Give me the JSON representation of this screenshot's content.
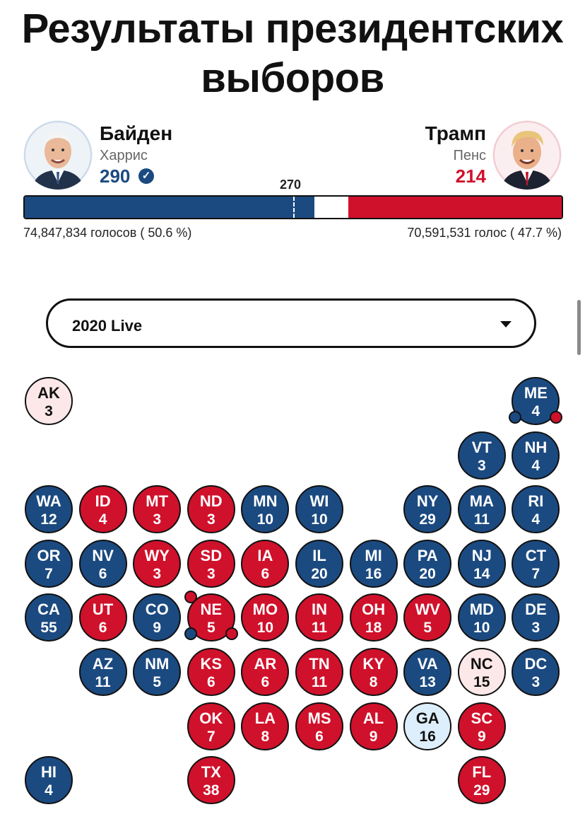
{
  "title": "Результаты президентских выборов",
  "democrat": {
    "name": "Байден",
    "running_mate": "Харрис",
    "electoral_votes": "290",
    "popular_votes": "74,847,834 голосов ( 50.6 %)",
    "winner_check": "✓",
    "color": "#1b4a80",
    "photo_icon": "biden-portrait"
  },
  "republican": {
    "name": "Трамп",
    "running_mate": "Пенс",
    "electoral_votes": "214",
    "popular_votes": "70,591,531 голос ( 47.7 %)",
    "color": "#d0112b",
    "photo_icon": "trump-portrait"
  },
  "bar": {
    "threshold_label": "270",
    "total": 538,
    "dem_value": 290,
    "rep_value": 214,
    "threshold": 270
  },
  "dropdown": {
    "selected": "2020 Live"
  },
  "legend_colors": {
    "dem": "#1b4a80",
    "rep": "#d0112b",
    "lean_rep": "#fde8e9",
    "lean_dem": "#ddeefc"
  },
  "states": [
    {
      "abbr": "AK",
      "ev": "3",
      "status": "lr",
      "col": 0,
      "row": 0
    },
    {
      "abbr": "ME",
      "ev": "4",
      "status": "D",
      "col": 9,
      "row": 0
    },
    {
      "abbr": "VT",
      "ev": "3",
      "status": "D",
      "col": 8,
      "row": 1
    },
    {
      "abbr": "NH",
      "ev": "4",
      "status": "D",
      "col": 9,
      "row": 1
    },
    {
      "abbr": "WA",
      "ev": "12",
      "status": "D",
      "col": 0,
      "row": 2
    },
    {
      "abbr": "ID",
      "ev": "4",
      "status": "R",
      "col": 1,
      "row": 2
    },
    {
      "abbr": "MT",
      "ev": "3",
      "status": "R",
      "col": 2,
      "row": 2
    },
    {
      "abbr": "ND",
      "ev": "3",
      "status": "R",
      "col": 3,
      "row": 2
    },
    {
      "abbr": "MN",
      "ev": "10",
      "status": "D",
      "col": 4,
      "row": 2
    },
    {
      "abbr": "WI",
      "ev": "10",
      "status": "D",
      "col": 5,
      "row": 2
    },
    {
      "abbr": "NY",
      "ev": "29",
      "status": "D",
      "col": 7,
      "row": 2
    },
    {
      "abbr": "MA",
      "ev": "11",
      "status": "D",
      "col": 8,
      "row": 2
    },
    {
      "abbr": "RI",
      "ev": "4",
      "status": "D",
      "col": 9,
      "row": 2
    },
    {
      "abbr": "OR",
      "ev": "7",
      "status": "D",
      "col": 0,
      "row": 3
    },
    {
      "abbr": "NV",
      "ev": "6",
      "status": "D",
      "col": 1,
      "row": 3
    },
    {
      "abbr": "WY",
      "ev": "3",
      "status": "R",
      "col": 2,
      "row": 3
    },
    {
      "abbr": "SD",
      "ev": "3",
      "status": "R",
      "col": 3,
      "row": 3
    },
    {
      "abbr": "IA",
      "ev": "6",
      "status": "R",
      "col": 4,
      "row": 3
    },
    {
      "abbr": "IL",
      "ev": "20",
      "status": "D",
      "col": 5,
      "row": 3
    },
    {
      "abbr": "MI",
      "ev": "16",
      "status": "D",
      "col": 6,
      "row": 3
    },
    {
      "abbr": "PA",
      "ev": "20",
      "status": "D",
      "col": 7,
      "row": 3
    },
    {
      "abbr": "NJ",
      "ev": "14",
      "status": "D",
      "col": 8,
      "row": 3
    },
    {
      "abbr": "CT",
      "ev": "7",
      "status": "D",
      "col": 9,
      "row": 3
    },
    {
      "abbr": "CA",
      "ev": "55",
      "status": "D",
      "col": 0,
      "row": 4
    },
    {
      "abbr": "UT",
      "ev": "6",
      "status": "R",
      "col": 1,
      "row": 4
    },
    {
      "abbr": "CO",
      "ev": "9",
      "status": "D",
      "col": 2,
      "row": 4
    },
    {
      "abbr": "NE",
      "ev": "5",
      "status": "R",
      "col": 3,
      "row": 4
    },
    {
      "abbr": "MO",
      "ev": "10",
      "status": "R",
      "col": 4,
      "row": 4
    },
    {
      "abbr": "IN",
      "ev": "11",
      "status": "R",
      "col": 5,
      "row": 4
    },
    {
      "abbr": "OH",
      "ev": "18",
      "status": "R",
      "col": 6,
      "row": 4
    },
    {
      "abbr": "WV",
      "ev": "5",
      "status": "R",
      "col": 7,
      "row": 4
    },
    {
      "abbr": "MD",
      "ev": "10",
      "status": "D",
      "col": 8,
      "row": 4
    },
    {
      "abbr": "DE",
      "ev": "3",
      "status": "D",
      "col": 9,
      "row": 4
    },
    {
      "abbr": "AZ",
      "ev": "11",
      "status": "D",
      "col": 1,
      "row": 5
    },
    {
      "abbr": "NM",
      "ev": "5",
      "status": "D",
      "col": 2,
      "row": 5
    },
    {
      "abbr": "KS",
      "ev": "6",
      "status": "R",
      "col": 3,
      "row": 5
    },
    {
      "abbr": "AR",
      "ev": "6",
      "status": "R",
      "col": 4,
      "row": 5
    },
    {
      "abbr": "TN",
      "ev": "11",
      "status": "R",
      "col": 5,
      "row": 5
    },
    {
      "abbr": "KY",
      "ev": "8",
      "status": "R",
      "col": 6,
      "row": 5
    },
    {
      "abbr": "VA",
      "ev": "13",
      "status": "D",
      "col": 7,
      "row": 5
    },
    {
      "abbr": "NC",
      "ev": "15",
      "status": "lr",
      "col": 8,
      "row": 5
    },
    {
      "abbr": "DC",
      "ev": "3",
      "status": "D",
      "col": 9,
      "row": 5
    },
    {
      "abbr": "OK",
      "ev": "7",
      "status": "R",
      "col": 3,
      "row": 6
    },
    {
      "abbr": "LA",
      "ev": "8",
      "status": "R",
      "col": 4,
      "row": 6
    },
    {
      "abbr": "MS",
      "ev": "6",
      "status": "R",
      "col": 5,
      "row": 6
    },
    {
      "abbr": "AL",
      "ev": "9",
      "status": "R",
      "col": 6,
      "row": 6
    },
    {
      "abbr": "GA",
      "ev": "16",
      "status": "ld",
      "col": 7,
      "row": 6
    },
    {
      "abbr": "SC",
      "ev": "9",
      "status": "R",
      "col": 8,
      "row": 6
    },
    {
      "abbr": "HI",
      "ev": "4",
      "status": "D",
      "col": 0,
      "row": 7
    },
    {
      "abbr": "TX",
      "ev": "38",
      "status": "R",
      "col": 3,
      "row": 7
    },
    {
      "abbr": "FL",
      "ev": "29",
      "status": "R",
      "col": 8,
      "row": 7
    }
  ],
  "district_dots": [
    {
      "state": "ME",
      "status": "D",
      "pos": "bottom-left"
    },
    {
      "state": "ME",
      "status": "R",
      "pos": "bottom-right"
    },
    {
      "state": "NE",
      "status": "R",
      "pos": "top-left"
    },
    {
      "state": "NE",
      "status": "D",
      "pos": "bottom-left"
    },
    {
      "state": "NE",
      "status": "R",
      "pos": "bottom-right"
    }
  ]
}
